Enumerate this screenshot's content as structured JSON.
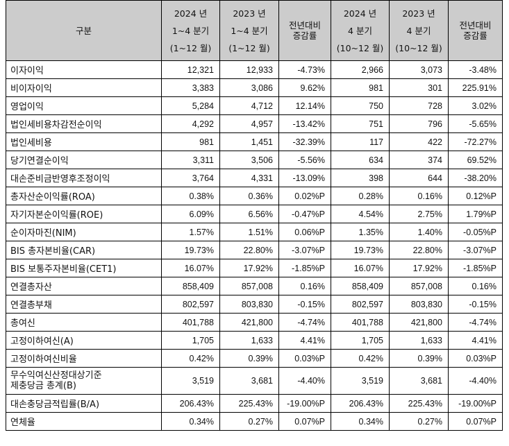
{
  "header": {
    "category": "구분",
    "columns": [
      {
        "line1": "2024 년",
        "line2": "1~4 분기",
        "line3": "(1~12 월)"
      },
      {
        "line1": "2023 년",
        "line2": "1~4 분기",
        "line3": "(1~12 월)"
      },
      {
        "line1": "전년대비",
        "line2": "증감률"
      },
      {
        "line1": "2024 년",
        "line2": "4 분기",
        "line3": "(10~12 월)"
      },
      {
        "line1": "2023 년",
        "line2": "4 분기",
        "line3": "(10~12 월)"
      },
      {
        "line1": "전년대비",
        "line2": "증감률"
      }
    ]
  },
  "rows": [
    {
      "label": "이자이익",
      "v": [
        "12,321",
        "12,933",
        "-4.73%",
        "2,966",
        "3,073",
        "-3.48%"
      ]
    },
    {
      "label": "비이자이익",
      "v": [
        "3,383",
        "3,086",
        "9.62%",
        "981",
        "301",
        "225.91%"
      ]
    },
    {
      "label": "영업이익",
      "v": [
        "5,284",
        "4,712",
        "12.14%",
        "750",
        "728",
        "3.02%"
      ]
    },
    {
      "label": "법인세비용차감전순이익",
      "v": [
        "4,292",
        "4,957",
        "-13.42%",
        "751",
        "796",
        "-5.65%"
      ]
    },
    {
      "label": "법인세비용",
      "v": [
        "981",
        "1,451",
        "-32.39%",
        "117",
        "422",
        "-72.27%"
      ]
    },
    {
      "label": "당기연결순이익",
      "v": [
        "3,311",
        "3,506",
        "-5.56%",
        "634",
        "374",
        "69.52%"
      ]
    },
    {
      "label": "대손준비금반영후조정이익",
      "v": [
        "3,764",
        "4,331",
        "-13.09%",
        "398",
        "644",
        "-38.20%"
      ]
    },
    {
      "label": "총자산순이익률(ROA)",
      "v": [
        "0.38%",
        "0.36%",
        "0.02%P",
        "0.28%",
        "0.16%",
        "0.12%P"
      ]
    },
    {
      "label": "자기자본순이익률(ROE)",
      "v": [
        "6.09%",
        "6.56%",
        "-0.47%P",
        "4.54%",
        "2.75%",
        "1.79%P"
      ]
    },
    {
      "label": "순이자마진(NIM)",
      "v": [
        "1.57%",
        "1.51%",
        "0.06%P",
        "1.35%",
        "1.40%",
        "-0.05%P"
      ]
    },
    {
      "label": "BIS 총자본비율(CAR)",
      "v": [
        "19.73%",
        "22.80%",
        "-3.07%P",
        "19.73%",
        "22.80%",
        "-3.07%P"
      ]
    },
    {
      "label": "BIS 보통주자본비율(CET1)",
      "v": [
        "16.07%",
        "17.92%",
        "-1.85%P",
        "16.07%",
        "17.92%",
        "-1.85%P"
      ]
    },
    {
      "label": "연결총자산",
      "v": [
        "858,409",
        "857,008",
        "0.16%",
        "858,409",
        "857,008",
        "0.16%"
      ]
    },
    {
      "label": "연결총부채",
      "v": [
        "802,597",
        "803,830",
        "-0.15%",
        "802,597",
        "803,830",
        "-0.15%"
      ]
    },
    {
      "label": "총여신",
      "v": [
        "401,788",
        "421,800",
        "-4.74%",
        "401,788",
        "421,800",
        "-4.74%"
      ]
    },
    {
      "label": "고정이하여신(A)",
      "v": [
        "1,705",
        "1,633",
        "4.41%",
        "1,705",
        "1,633",
        "4.41%"
      ]
    },
    {
      "label": "고정이하여신비율",
      "v": [
        "0.42%",
        "0.39%",
        "0.03%P",
        "0.42%",
        "0.39%",
        "0.03%P"
      ]
    },
    {
      "label": "무수익여신산정대상기준",
      "label2": "제충당금 총계(B)",
      "v": [
        "3,519",
        "3,681",
        "-4.40%",
        "3,519",
        "3,681",
        "-4.40%"
      ]
    },
    {
      "label": "대손충당금적립률(B/A)",
      "v": [
        "206.43%",
        "225.43%",
        "-19.00%P",
        "206.43%",
        "225.43%",
        "-19.00%P"
      ]
    },
    {
      "label": "연체율",
      "v": [
        "0.34%",
        "0.27%",
        "0.07%P",
        "0.34%",
        "0.27%",
        "0.07%P"
      ]
    }
  ]
}
